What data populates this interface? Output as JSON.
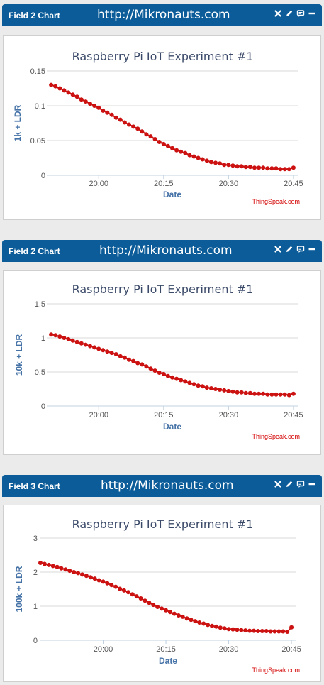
{
  "panels": [
    {
      "header": {
        "title": "Field 2 Chart",
        "url": "http://Mikronauts.com"
      },
      "credit": "ThingSpeak.com",
      "chart_data": {
        "type": "line",
        "title": "Raspberry Pi IoT Experiment #1",
        "xlabel": "Date",
        "ylabel": "1k + LDR",
        "x_ticks": [
          "20:00",
          "20:15",
          "20:30",
          "20:45"
        ],
        "y_ticks": [
          "0",
          "0.05",
          "0.1",
          "0.15"
        ],
        "ylim": [
          0,
          0.15
        ],
        "xlim": [
          "19:48",
          "20:46"
        ],
        "color": "#cc1111",
        "x": [
          "19:49",
          "19:50",
          "19:51",
          "19:52",
          "19:53",
          "19:54",
          "19:55",
          "19:56",
          "19:57",
          "19:58",
          "19:59",
          "20:00",
          "20:01",
          "20:02",
          "20:03",
          "20:04",
          "20:05",
          "20:06",
          "20:07",
          "20:08",
          "20:09",
          "20:10",
          "20:11",
          "20:12",
          "20:13",
          "20:14",
          "20:15",
          "20:16",
          "20:17",
          "20:18",
          "20:19",
          "20:20",
          "20:21",
          "20:22",
          "20:23",
          "20:24",
          "20:25",
          "20:26",
          "20:27",
          "20:28",
          "20:29",
          "20:30",
          "20:31",
          "20:32",
          "20:33",
          "20:34",
          "20:35",
          "20:36",
          "20:37",
          "20:38",
          "20:39",
          "20:40",
          "20:41",
          "20:42",
          "20:43",
          "20:44",
          "20:45"
        ],
        "values": [
          0.13,
          0.128,
          0.125,
          0.122,
          0.119,
          0.116,
          0.113,
          0.109,
          0.106,
          0.103,
          0.1,
          0.097,
          0.093,
          0.09,
          0.087,
          0.083,
          0.08,
          0.076,
          0.073,
          0.07,
          0.067,
          0.063,
          0.059,
          0.056,
          0.052,
          0.048,
          0.045,
          0.042,
          0.039,
          0.036,
          0.034,
          0.032,
          0.029,
          0.027,
          0.025,
          0.023,
          0.021,
          0.019,
          0.018,
          0.017,
          0.015,
          0.015,
          0.014,
          0.013,
          0.013,
          0.012,
          0.012,
          0.011,
          0.011,
          0.011,
          0.01,
          0.01,
          0.01,
          0.009,
          0.009,
          0.009,
          0.011
        ]
      }
    },
    {
      "header": {
        "title": "Field 2 Chart",
        "url": "http://Mikronauts.com"
      },
      "credit": "ThingSpeak.com",
      "chart_data": {
        "type": "line",
        "title": "Raspberry Pi IoT Experiment #1",
        "xlabel": "Date",
        "ylabel": "10k + LDR",
        "x_ticks": [
          "20:00",
          "20:15",
          "20:30",
          "20:45"
        ],
        "y_ticks": [
          "0",
          "0.5",
          "1",
          "1.5"
        ],
        "ylim": [
          0,
          1.5
        ],
        "xlim": [
          "19:48",
          "20:46"
        ],
        "color": "#cc1111",
        "x": [
          "19:49",
          "19:50",
          "19:51",
          "19:52",
          "19:53",
          "19:54",
          "19:55",
          "19:56",
          "19:57",
          "19:58",
          "19:59",
          "20:00",
          "20:01",
          "20:02",
          "20:03",
          "20:04",
          "20:05",
          "20:06",
          "20:07",
          "20:08",
          "20:09",
          "20:10",
          "20:11",
          "20:12",
          "20:13",
          "20:14",
          "20:15",
          "20:16",
          "20:17",
          "20:18",
          "20:19",
          "20:20",
          "20:21",
          "20:22",
          "20:23",
          "20:24",
          "20:25",
          "20:26",
          "20:27",
          "20:28",
          "20:29",
          "20:30",
          "20:31",
          "20:32",
          "20:33",
          "20:34",
          "20:35",
          "20:36",
          "20:37",
          "20:38",
          "20:39",
          "20:40",
          "20:41",
          "20:42",
          "20:43",
          "20:44",
          "20:45"
        ],
        "values": [
          1.05,
          1.04,
          1.02,
          1.0,
          0.98,
          0.96,
          0.94,
          0.92,
          0.9,
          0.88,
          0.86,
          0.84,
          0.82,
          0.8,
          0.78,
          0.76,
          0.73,
          0.71,
          0.68,
          0.66,
          0.63,
          0.61,
          0.58,
          0.55,
          0.52,
          0.49,
          0.47,
          0.44,
          0.42,
          0.4,
          0.38,
          0.36,
          0.34,
          0.32,
          0.3,
          0.29,
          0.27,
          0.26,
          0.25,
          0.24,
          0.23,
          0.22,
          0.21,
          0.2,
          0.2,
          0.19,
          0.19,
          0.18,
          0.18,
          0.18,
          0.17,
          0.17,
          0.17,
          0.17,
          0.17,
          0.16,
          0.18
        ]
      }
    },
    {
      "header": {
        "title": "Field 3 Chart",
        "url": "http://Mikronauts.com"
      },
      "credit": "ThingSpeak.com",
      "chart_data": {
        "type": "line",
        "title": "Raspberry Pi IoT Experiment #1",
        "xlabel": "Date",
        "ylabel": "100k + LDR",
        "x_ticks": [
          "20:00",
          "20:15",
          "20:30",
          "20:45"
        ],
        "y_ticks": [
          "0",
          "1",
          "2",
          "3"
        ],
        "ylim": [
          0,
          3
        ],
        "xlim": [
          "19:45",
          "20:46"
        ],
        "color": "#cc1111",
        "x": [
          "19:45",
          "19:46",
          "19:47",
          "19:48",
          "19:49",
          "19:50",
          "19:51",
          "19:52",
          "19:53",
          "19:54",
          "19:55",
          "19:56",
          "19:57",
          "19:58",
          "19:59",
          "20:00",
          "20:01",
          "20:02",
          "20:03",
          "20:04",
          "20:05",
          "20:06",
          "20:07",
          "20:08",
          "20:09",
          "20:10",
          "20:11",
          "20:12",
          "20:13",
          "20:14",
          "20:15",
          "20:16",
          "20:17",
          "20:18",
          "20:19",
          "20:20",
          "20:21",
          "20:22",
          "20:23",
          "20:24",
          "20:25",
          "20:26",
          "20:27",
          "20:28",
          "20:29",
          "20:30",
          "20:31",
          "20:32",
          "20:33",
          "20:34",
          "20:35",
          "20:36",
          "20:37",
          "20:38",
          "20:39",
          "20:40",
          "20:41",
          "20:42",
          "20:43",
          "20:44",
          "20:45"
        ],
        "values": [
          2.27,
          2.24,
          2.21,
          2.18,
          2.15,
          2.11,
          2.08,
          2.04,
          2.0,
          1.97,
          1.93,
          1.89,
          1.85,
          1.81,
          1.76,
          1.72,
          1.67,
          1.62,
          1.57,
          1.51,
          1.46,
          1.41,
          1.35,
          1.29,
          1.23,
          1.16,
          1.1,
          1.04,
          0.98,
          0.93,
          0.88,
          0.83,
          0.78,
          0.73,
          0.69,
          0.64,
          0.6,
          0.56,
          0.52,
          0.49,
          0.45,
          0.42,
          0.4,
          0.37,
          0.35,
          0.33,
          0.32,
          0.31,
          0.3,
          0.29,
          0.28,
          0.28,
          0.27,
          0.27,
          0.27,
          0.26,
          0.26,
          0.26,
          0.26,
          0.25,
          0.38
        ]
      }
    }
  ]
}
